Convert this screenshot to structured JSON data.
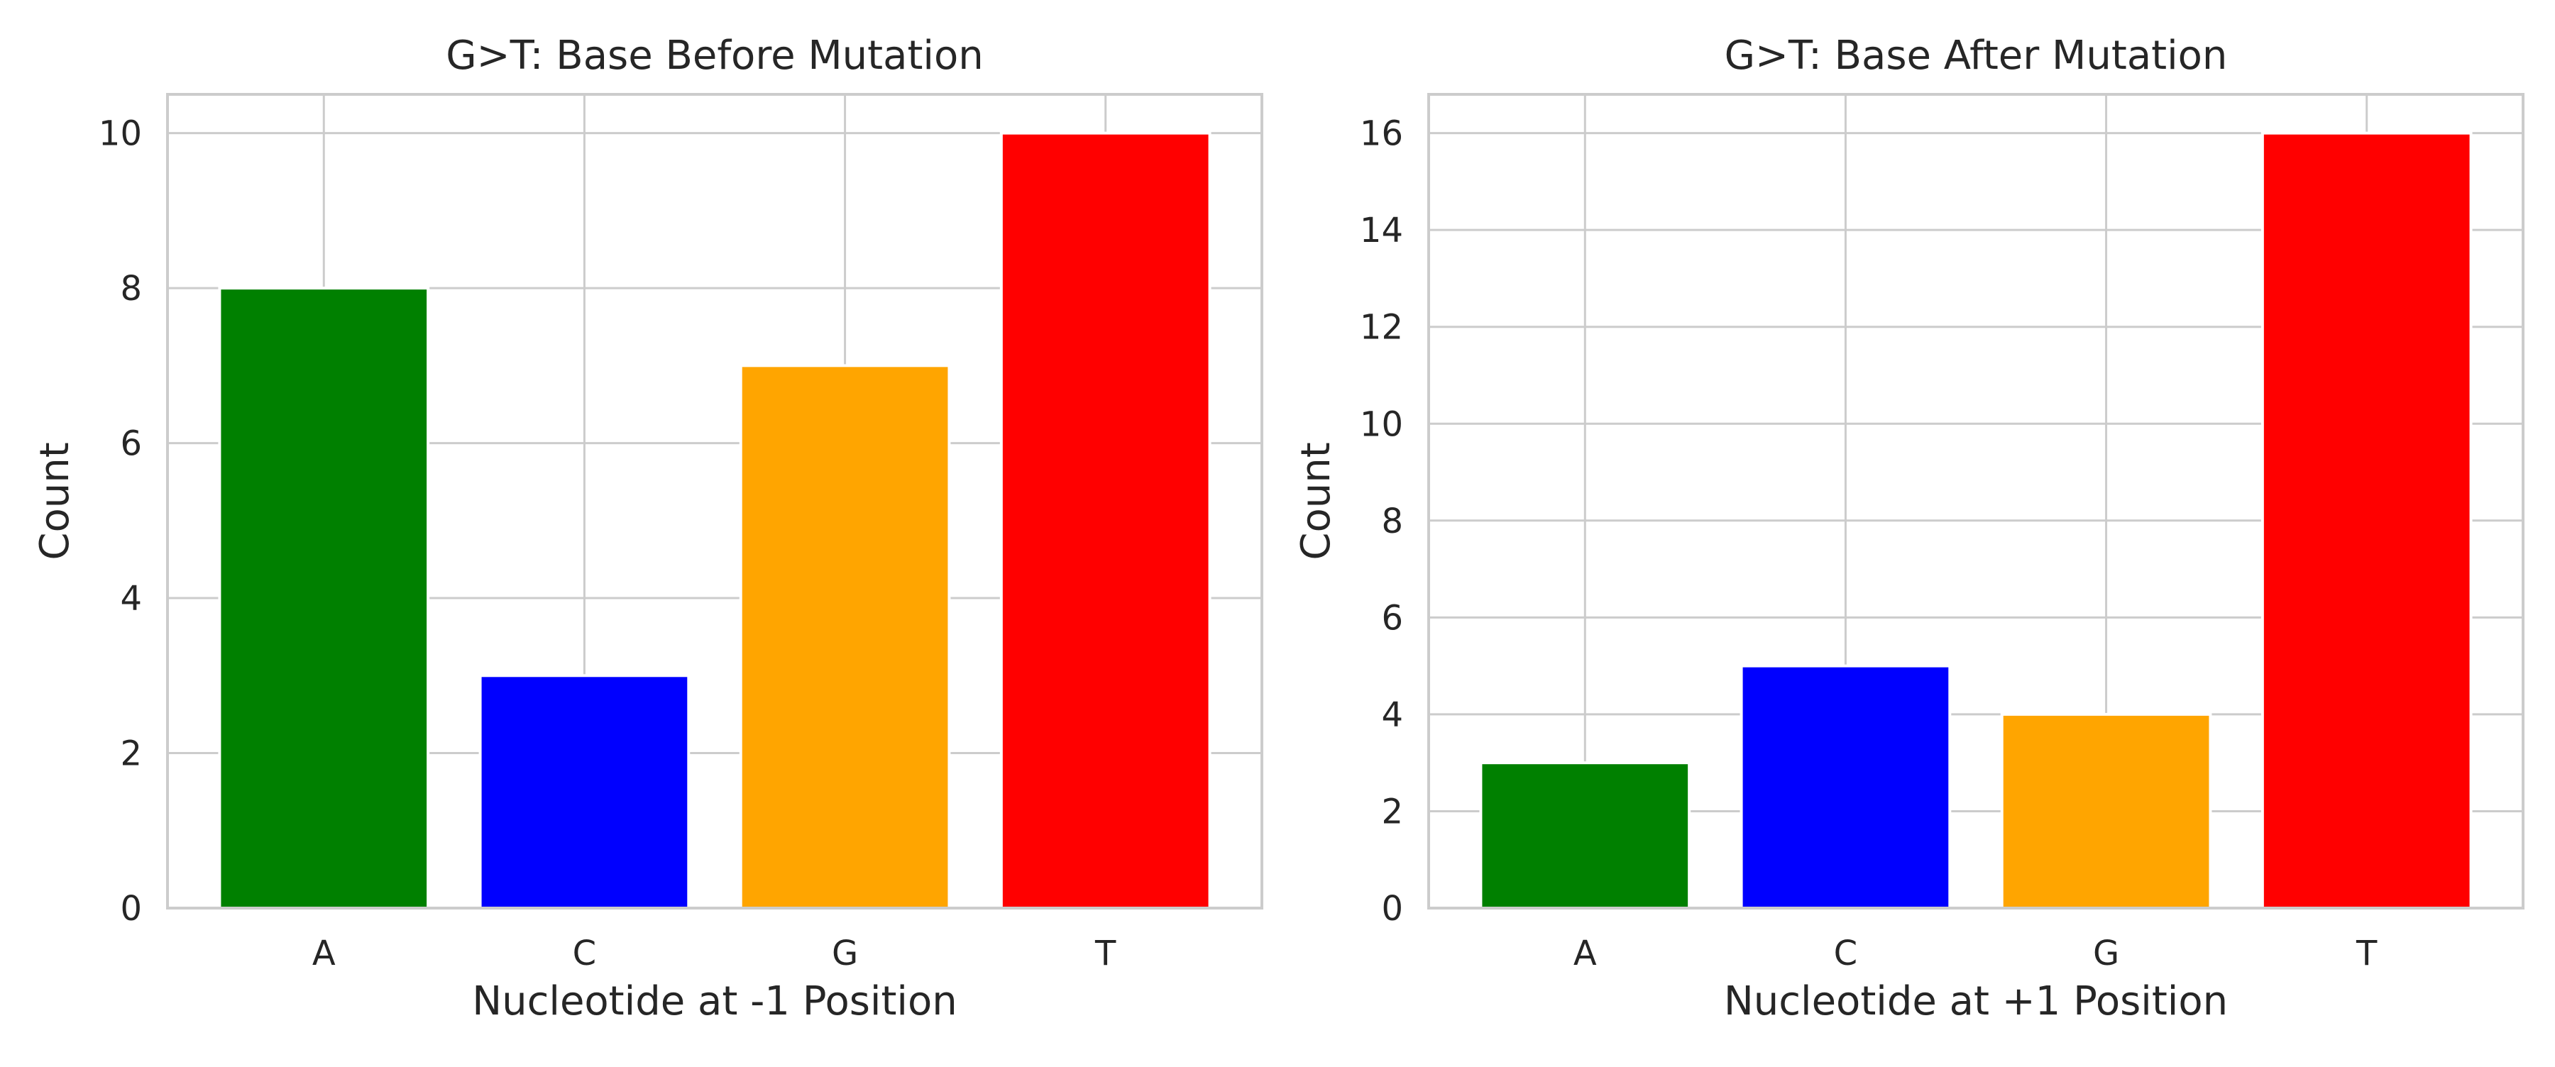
{
  "colors": {
    "A": "#008000",
    "C": "#0000ff",
    "G": "#ffa500",
    "T": "#ff0000",
    "grid": "#cccccc",
    "frame": "#cccccc",
    "background": "#ffffff"
  },
  "chart_data": [
    {
      "type": "bar",
      "title": "G>T: Base Before Mutation",
      "xlabel": "Nucleotide at -1 Position",
      "ylabel": "Count",
      "categories": [
        "A",
        "C",
        "G",
        "T"
      ],
      "values": [
        8,
        3,
        7,
        10
      ],
      "ylim": [
        0,
        10.5
      ],
      "yticks": [
        0,
        2,
        4,
        6,
        8,
        10
      ],
      "grid": true
    },
    {
      "type": "bar",
      "title": "G>T: Base After Mutation",
      "xlabel": "Nucleotide at +1 Position",
      "ylabel": "Count",
      "categories": [
        "A",
        "C",
        "G",
        "T"
      ],
      "values": [
        3,
        5,
        4,
        16
      ],
      "ylim": [
        0,
        16.8
      ],
      "yticks": [
        0,
        2,
        4,
        6,
        8,
        10,
        12,
        14,
        16
      ],
      "grid": true
    }
  ]
}
